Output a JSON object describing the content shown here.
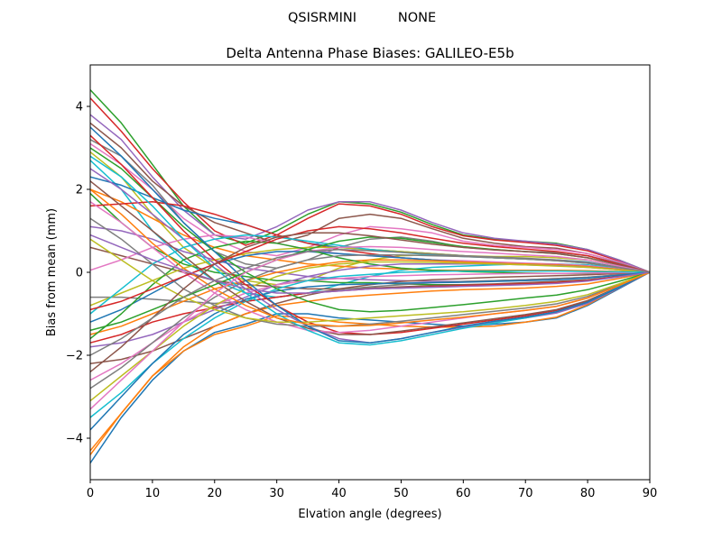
{
  "chart_data": {
    "type": "line",
    "suptitle_left": "QSISRMINI",
    "suptitle_right": "NONE",
    "title": "Delta Antenna Phase Biases: GALILEO-E5b",
    "xlabel": "Elvation angle (degrees)",
    "ylabel": "Bias from mean (mm)",
    "xlim": [
      0,
      90
    ],
    "ylim": [
      -5,
      5
    ],
    "xticks": [
      0,
      10,
      20,
      30,
      40,
      50,
      60,
      70,
      80,
      90
    ],
    "yticks": [
      -4,
      -2,
      0,
      2,
      4
    ],
    "grid": false,
    "x": [
      0,
      5,
      10,
      15,
      20,
      25,
      30,
      35,
      40,
      45,
      50,
      55,
      60,
      65,
      70,
      75,
      80,
      85,
      90
    ],
    "series": [
      {
        "values": [
          -4.6,
          -3.5,
          -2.6,
          -1.9,
          -1.45,
          -1.25,
          -1.0,
          -1.0,
          -1.1,
          -1.15,
          -1.2,
          -1.25,
          -1.3,
          -1.25,
          -1.2,
          -1.1,
          -0.8,
          -0.4,
          0
        ]
      },
      {
        "values": [
          -4.4,
          -3.4,
          -2.5,
          -1.9,
          -1.5,
          -1.3,
          -1.05,
          -1.1,
          -1.2,
          -1.25,
          -1.3,
          -1.32,
          -1.32,
          -1.3,
          -1.2,
          -1.08,
          -0.78,
          -0.38,
          0
        ]
      },
      {
        "values": [
          4.4,
          3.6,
          2.6,
          1.6,
          0.9,
          0.7,
          1.0,
          1.4,
          1.7,
          1.65,
          1.45,
          1.15,
          0.9,
          0.8,
          0.75,
          0.7,
          0.55,
          0.3,
          0
        ]
      },
      {
        "values": [
          4.2,
          3.4,
          2.5,
          1.7,
          1.0,
          0.65,
          0.9,
          1.3,
          1.65,
          1.6,
          1.4,
          1.1,
          0.88,
          0.78,
          0.72,
          0.65,
          0.52,
          0.28,
          0
        ]
      },
      {
        "values": [
          3.8,
          3.2,
          2.3,
          1.5,
          0.9,
          0.8,
          1.1,
          1.5,
          1.7,
          1.7,
          1.5,
          1.2,
          0.95,
          0.82,
          0.75,
          0.68,
          0.55,
          0.3,
          0
        ]
      },
      {
        "values": [
          3.6,
          3.0,
          2.2,
          1.6,
          1.2,
          0.95,
          0.7,
          0.9,
          1.3,
          1.4,
          1.3,
          1.05,
          0.82,
          0.7,
          0.62,
          0.58,
          0.45,
          0.25,
          0
        ]
      },
      {
        "values": [
          3.1,
          2.6,
          2.0,
          1.3,
          0.8,
          0.5,
          0.4,
          0.6,
          0.9,
          1.1,
          1.05,
          0.95,
          0.75,
          0.65,
          0.6,
          0.55,
          0.45,
          0.25,
          0
        ]
      },
      {
        "values": [
          3.2,
          2.8,
          2.1,
          1.2,
          0.5,
          0.2,
          0.1,
          0.3,
          0.6,
          0.8,
          0.85,
          0.75,
          0.6,
          0.55,
          0.5,
          0.48,
          0.4,
          0.22,
          0
        ]
      },
      {
        "values": [
          2.9,
          2.3,
          1.4,
          0.6,
          0.1,
          -0.2,
          -0.3,
          -0.2,
          0.1,
          0.3,
          0.4,
          0.42,
          0.4,
          0.38,
          0.38,
          0.35,
          0.3,
          0.15,
          0
        ]
      },
      {
        "values": [
          2.7,
          2.0,
          1.0,
          0.3,
          -0.2,
          -0.5,
          -0.6,
          -0.5,
          -0.3,
          -0.1,
          0.05,
          0.12,
          0.15,
          0.18,
          0.2,
          0.2,
          0.18,
          0.1,
          0
        ]
      },
      {
        "values": [
          2.3,
          2.1,
          1.8,
          1.5,
          1.3,
          1.15,
          0.9,
          0.7,
          0.6,
          0.55,
          0.5,
          0.45,
          0.4,
          0.35,
          0.32,
          0.3,
          0.25,
          0.12,
          0
        ]
      },
      {
        "values": [
          2.0,
          1.7,
          1.3,
          0.9,
          0.6,
          0.4,
          0.3,
          0.2,
          0.15,
          0.1,
          0.08,
          0.05,
          0.05,
          0.05,
          0.05,
          0.05,
          0.04,
          0.02,
          0
        ]
      },
      {
        "values": [
          1.9,
          1.2,
          0.6,
          0.2,
          0.0,
          -0.1,
          -0.2,
          -0.2,
          -0.25,
          -0.25,
          -0.28,
          -0.3,
          -0.3,
          -0.3,
          -0.28,
          -0.25,
          -0.2,
          -0.1,
          0
        ]
      },
      {
        "values": [
          1.6,
          1.65,
          1.7,
          1.6,
          1.4,
          1.15,
          0.9,
          0.7,
          0.55,
          0.45,
          0.35,
          0.3,
          0.25,
          0.22,
          0.2,
          0.18,
          0.15,
          0.08,
          0
        ]
      },
      {
        "values": [
          1.1,
          1.0,
          0.8,
          0.5,
          0.3,
          0.1,
          0.0,
          -0.1,
          -0.15,
          -0.18,
          -0.2,
          -0.22,
          -0.22,
          -0.2,
          -0.18,
          -0.15,
          -0.12,
          -0.06,
          0
        ]
      },
      {
        "values": [
          0.6,
          0.4,
          0.2,
          0.0,
          -0.2,
          -0.3,
          -0.35,
          -0.4,
          -0.4,
          -0.38,
          -0.35,
          -0.32,
          -0.3,
          -0.28,
          -0.25,
          -0.22,
          -0.18,
          -0.1,
          0
        ]
      },
      {
        "values": [
          0.05,
          0.3,
          0.6,
          0.8,
          0.9,
          0.85,
          0.7,
          0.55,
          0.45,
          0.4,
          0.35,
          0.3,
          0.28,
          0.25,
          0.22,
          0.2,
          0.16,
          0.08,
          0
        ]
      },
      {
        "values": [
          -0.6,
          -0.6,
          -0.65,
          -0.7,
          -0.75,
          -0.7,
          -0.6,
          -0.5,
          -0.42,
          -0.35,
          -0.3,
          -0.25,
          -0.22,
          -0.2,
          -0.18,
          -0.15,
          -0.12,
          -0.06,
          0
        ]
      },
      {
        "values": [
          -0.8,
          -0.5,
          -0.2,
          0.1,
          0.3,
          0.45,
          0.55,
          0.6,
          0.6,
          0.55,
          0.5,
          0.45,
          0.4,
          0.35,
          0.32,
          0.28,
          0.22,
          0.12,
          0
        ]
      },
      {
        "values": [
          -1.0,
          -0.4,
          0.2,
          0.6,
          0.8,
          0.9,
          0.85,
          0.75,
          0.65,
          0.55,
          0.48,
          0.42,
          0.38,
          0.35,
          0.32,
          0.28,
          0.22,
          0.12,
          0
        ]
      },
      {
        "values": [
          -1.2,
          -0.9,
          -0.5,
          -0.1,
          0.2,
          0.4,
          0.5,
          0.5,
          0.45,
          0.4,
          0.35,
          0.3,
          0.25,
          0.22,
          0.2,
          0.18,
          0.14,
          0.07,
          0
        ]
      },
      {
        "values": [
          -1.5,
          -1.3,
          -1.0,
          -0.7,
          -0.4,
          -0.2,
          0.0,
          0.15,
          0.25,
          0.3,
          0.3,
          0.28,
          0.25,
          0.22,
          0.2,
          0.18,
          0.14,
          0.07,
          0
        ]
      },
      {
        "values": [
          -1.6,
          -1.0,
          -0.3,
          0.3,
          0.6,
          0.75,
          0.7,
          0.55,
          0.35,
          0.2,
          0.1,
          0.05,
          0.02,
          0.0,
          -0.02,
          -0.03,
          -0.03,
          -0.02,
          0
        ]
      },
      {
        "values": [
          -1.7,
          -1.5,
          -1.2,
          -1.0,
          -0.85,
          -0.7,
          -0.6,
          -0.5,
          -0.45,
          -0.4,
          -0.38,
          -0.35,
          -0.32,
          -0.3,
          -0.28,
          -0.25,
          -0.2,
          -0.1,
          0
        ]
      },
      {
        "values": [
          -1.8,
          -1.7,
          -1.5,
          -1.2,
          -0.9,
          -0.6,
          -0.3,
          -0.1,
          0.05,
          0.15,
          0.2,
          0.2,
          0.2,
          0.2,
          0.18,
          0.16,
          0.12,
          0.06,
          0
        ]
      },
      {
        "values": [
          -2.2,
          -2.1,
          -1.9,
          -1.6,
          -1.3,
          -1.0,
          -0.75,
          -0.55,
          -0.4,
          -0.3,
          -0.22,
          -0.18,
          -0.15,
          -0.12,
          -0.1,
          -0.08,
          -0.06,
          -0.03,
          0
        ]
      },
      {
        "values": [
          -2.6,
          -2.2,
          -1.7,
          -1.2,
          -0.8,
          -0.5,
          -0.3,
          -0.2,
          -0.15,
          -0.1,
          -0.08,
          -0.06,
          -0.05,
          -0.04,
          -0.03,
          -0.03,
          -0.02,
          -0.01,
          0
        ]
      },
      {
        "values": [
          -2.8,
          -2.3,
          -1.7,
          -1.1,
          -0.6,
          -0.2,
          0.1,
          0.3,
          0.4,
          0.42,
          0.42,
          0.4,
          0.38,
          0.35,
          0.32,
          0.28,
          0.22,
          0.12,
          0
        ]
      },
      {
        "values": [
          -3.1,
          -2.5,
          -1.9,
          -1.3,
          -0.8,
          -0.4,
          -0.1,
          0.1,
          0.2,
          0.25,
          0.25,
          0.24,
          0.22,
          0.2,
          0.18,
          0.15,
          0.12,
          0.06,
          0
        ]
      },
      {
        "values": [
          -3.5,
          -2.9,
          -2.2,
          -1.6,
          -1.1,
          -0.7,
          -0.4,
          -0.2,
          -0.1,
          -0.05,
          0.0,
          0.02,
          0.03,
          0.03,
          0.03,
          0.03,
          0.02,
          0.01,
          0
        ]
      },
      {
        "values": [
          -3.8,
          -3.0,
          -2.2,
          -1.5,
          -1.0,
          -0.65,
          -0.45,
          -0.35,
          -0.3,
          -0.28,
          -0.26,
          -0.25,
          -0.24,
          -0.22,
          -0.2,
          -0.18,
          -0.14,
          -0.07,
          0
        ]
      },
      {
        "values": [
          -4.3,
          -3.4,
          -2.5,
          -1.8,
          -1.3,
          -1.0,
          -0.8,
          -0.7,
          -0.6,
          -0.55,
          -0.5,
          -0.45,
          -0.42,
          -0.4,
          -0.38,
          -0.34,
          -0.28,
          -0.15,
          0
        ]
      },
      {
        "values": [
          3.0,
          2.5,
          1.8,
          1.1,
          0.5,
          0.0,
          -0.4,
          -0.7,
          -0.9,
          -0.95,
          -0.92,
          -0.85,
          -0.78,
          -0.7,
          -0.62,
          -0.55,
          -0.42,
          -0.22,
          0
        ]
      },
      {
        "values": [
          3.3,
          2.6,
          1.8,
          1.0,
          0.3,
          -0.3,
          -0.8,
          -1.2,
          -1.45,
          -1.5,
          -1.45,
          -1.35,
          -1.25,
          -1.15,
          -1.05,
          -0.92,
          -0.7,
          -0.36,
          0
        ]
      },
      {
        "values": [
          2.5,
          2.0,
          1.4,
          0.8,
          0.2,
          -0.4,
          -0.9,
          -1.3,
          -1.6,
          -1.7,
          -1.6,
          -1.45,
          -1.32,
          -1.2,
          -1.1,
          -0.98,
          -0.75,
          -0.38,
          0
        ]
      },
      {
        "values": [
          2.2,
          1.6,
          1.0,
          0.4,
          -0.2,
          -0.7,
          -1.1,
          -1.35,
          -1.5,
          -1.5,
          -1.42,
          -1.32,
          -1.22,
          -1.12,
          -1.02,
          -0.9,
          -0.68,
          -0.35,
          0
        ]
      },
      {
        "values": [
          1.7,
          1.2,
          0.6,
          0.0,
          -0.5,
          -0.9,
          -1.2,
          -1.4,
          -1.45,
          -1.4,
          -1.3,
          -1.2,
          -1.1,
          -1.0,
          -0.92,
          -0.82,
          -0.62,
          -0.32,
          0
        ]
      },
      {
        "values": [
          1.3,
          0.8,
          0.2,
          -0.4,
          -0.8,
          -1.1,
          -1.25,
          -1.3,
          -1.3,
          -1.25,
          -1.18,
          -1.1,
          -1.02,
          -0.94,
          -0.86,
          -0.76,
          -0.58,
          -0.3,
          0
        ]
      },
      {
        "values": [
          0.8,
          0.3,
          -0.2,
          -0.6,
          -0.9,
          -1.1,
          -1.2,
          -1.2,
          -1.15,
          -1.1,
          -1.05,
          -1.0,
          -0.95,
          -0.88,
          -0.8,
          -0.7,
          -0.54,
          -0.28,
          0
        ]
      },
      {
        "values": [
          2.8,
          2.3,
          1.6,
          0.8,
          0.1,
          -0.5,
          -1.0,
          -1.4,
          -1.7,
          -1.75,
          -1.65,
          -1.5,
          -1.35,
          -1.22,
          -1.1,
          -0.95,
          -0.72,
          -0.36,
          0
        ]
      },
      {
        "values": [
          3.5,
          2.8,
          2.0,
          1.2,
          0.5,
          -0.2,
          -0.8,
          -1.3,
          -1.65,
          -1.7,
          -1.6,
          -1.45,
          -1.3,
          -1.18,
          -1.08,
          -0.95,
          -0.72,
          -0.37,
          0
        ]
      },
      {
        "values": [
          2.0,
          1.4,
          0.7,
          0.1,
          -0.4,
          -0.8,
          -1.1,
          -1.25,
          -1.3,
          -1.28,
          -1.22,
          -1.15,
          -1.08,
          -1.0,
          -0.92,
          -0.82,
          -0.62,
          -0.32,
          0
        ]
      },
      {
        "values": [
          -1.4,
          -1.2,
          -0.9,
          -0.6,
          -0.3,
          0.0,
          0.3,
          0.55,
          0.75,
          0.85,
          0.82,
          0.72,
          0.62,
          0.55,
          0.5,
          0.45,
          0.35,
          0.18,
          0
        ]
      },
      {
        "values": [
          -0.9,
          -0.7,
          -0.4,
          -0.1,
          0.2,
          0.5,
          0.8,
          1.0,
          1.1,
          1.05,
          0.95,
          0.82,
          0.7,
          0.62,
          0.56,
          0.5,
          0.4,
          0.2,
          0
        ]
      },
      {
        "values": [
          0.9,
          0.6,
          0.3,
          0.05,
          -0.2,
          -0.4,
          -0.5,
          -0.5,
          -0.45,
          -0.4,
          -0.38,
          -0.36,
          -0.34,
          -0.32,
          -0.3,
          -0.27,
          -0.21,
          -0.11,
          0
        ]
      },
      {
        "values": [
          -2.4,
          -1.8,
          -1.1,
          -0.4,
          0.2,
          0.6,
          0.85,
          0.95,
          0.95,
          0.88,
          0.78,
          0.68,
          0.6,
          0.54,
          0.5,
          0.45,
          0.35,
          0.18,
          0
        ]
      },
      {
        "values": [
          -3.3,
          -2.6,
          -1.9,
          -1.2,
          -0.5,
          0.0,
          0.3,
          0.5,
          0.6,
          0.62,
          0.6,
          0.55,
          0.5,
          0.46,
          0.42,
          0.38,
          0.3,
          0.15,
          0
        ]
      },
      {
        "values": [
          -2.0,
          -1.6,
          -1.1,
          -0.6,
          -0.2,
          0.1,
          0.35,
          0.5,
          0.55,
          0.52,
          0.48,
          0.44,
          0.4,
          0.37,
          0.34,
          0.3,
          0.24,
          0.12,
          0
        ]
      }
    ]
  }
}
